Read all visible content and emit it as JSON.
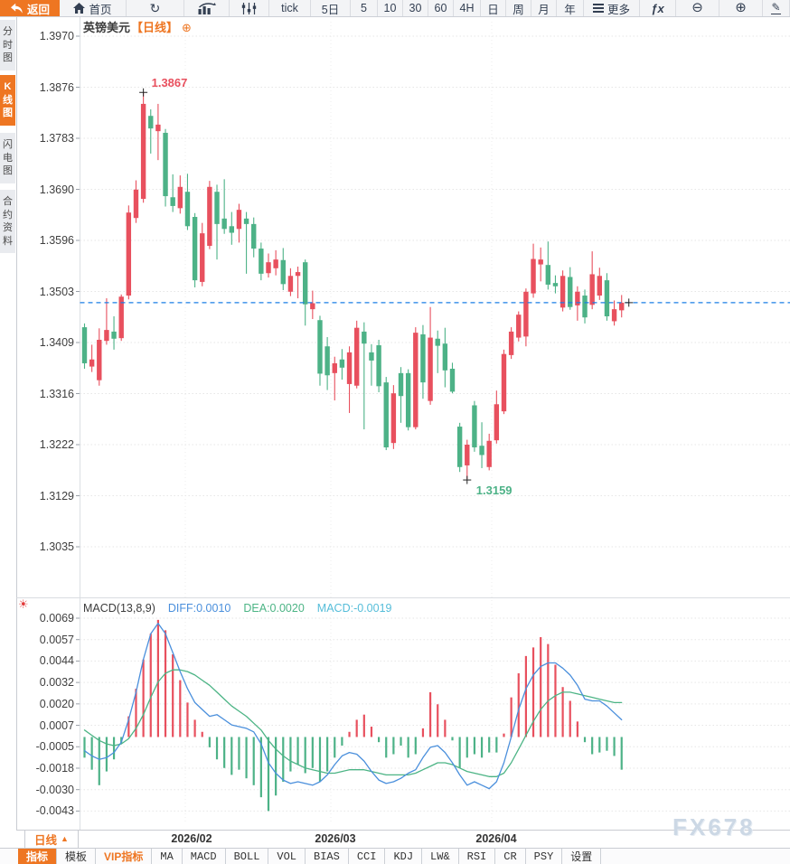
{
  "colors": {
    "accent": "#ee7622",
    "up": "#e8505e",
    "down": "#4db287",
    "diff_line": "#4a8fdc",
    "dea_line": "#4cb485",
    "macd_value_text": "#55bdd9",
    "dashed_line": "#1a7ee6",
    "annotation_high": "#e8505e",
    "annotation_low": "#4db287",
    "watermark": "#ccd8e5"
  },
  "top_toolbar": {
    "items": [
      {
        "name": "back-button",
        "icon": "back-icon",
        "label": "返回"
      },
      {
        "name": "home-button",
        "icon": "home-icon",
        "label": "首页"
      },
      {
        "name": "refresh-button",
        "icon": "refresh-icon",
        "label": ""
      },
      {
        "name": "chart-type-button",
        "icon": "bar-chart-icon",
        "label": ""
      },
      {
        "name": "indicator-style-button",
        "icon": "candlestick-icon",
        "label": ""
      },
      {
        "name": "timeframe-tick",
        "label": "tick"
      },
      {
        "name": "timeframe-5d",
        "label": "5日"
      },
      {
        "name": "timeframe-5",
        "label": "5"
      },
      {
        "name": "timeframe-10",
        "label": "10"
      },
      {
        "name": "timeframe-30",
        "label": "30"
      },
      {
        "name": "timeframe-60",
        "label": "60"
      },
      {
        "name": "timeframe-4h",
        "label": "4H"
      },
      {
        "name": "timeframe-day",
        "label": "日"
      },
      {
        "name": "timeframe-week",
        "label": "周"
      },
      {
        "name": "timeframe-month",
        "label": "月"
      },
      {
        "name": "timeframe-year",
        "label": "年"
      },
      {
        "name": "more-button",
        "icon": "menu-icon",
        "label": "更多"
      },
      {
        "name": "formula-button",
        "icon": "formula-icon",
        "label": ""
      },
      {
        "name": "zoom-out-button",
        "icon": "zoom-out-icon",
        "label": ""
      },
      {
        "name": "zoom-in-button",
        "icon": "zoom-in-icon",
        "label": ""
      },
      {
        "name": "draw-button",
        "icon": "draw-icon",
        "label": ""
      }
    ]
  },
  "sidebar": {
    "tabs": [
      {
        "name": "sidebar-tab-time-chart",
        "label": "分时图",
        "active": false
      },
      {
        "name": "sidebar-tab-kline-chart",
        "label": "K线图",
        "active": true
      },
      {
        "name": "sidebar-tab-lightning-chart",
        "label": "闪电图",
        "active": false
      },
      {
        "name": "sidebar-tab-contract-info",
        "label": "合约资料",
        "active": false
      }
    ]
  },
  "chart": {
    "instrument": "英镑美元",
    "timeframe_label": "【日线】"
  },
  "macd_header": {
    "name": "MACD(13,8,9)",
    "diff": "DIFF:0.0010",
    "dea": "DEA:0.0020",
    "macd": "MACD:-0.0019"
  },
  "bottom": {
    "timeframe_button": "日线",
    "tabs": [
      {
        "name": "tab-indicator",
        "label": "指标",
        "state": "active"
      },
      {
        "name": "tab-template",
        "label": "模板",
        "state": "normal"
      },
      {
        "name": "tab-vip-indicator",
        "label": "VIP指标",
        "state": "vip"
      },
      {
        "name": "tab-ma",
        "label": "MA",
        "state": "mono"
      },
      {
        "name": "tab-macd",
        "label": "MACD",
        "state": "mono"
      },
      {
        "name": "tab-boll",
        "label": "BOLL",
        "state": "mono"
      },
      {
        "name": "tab-vol",
        "label": "VOL",
        "state": "mono"
      },
      {
        "name": "tab-bias",
        "label": "BIAS",
        "state": "mono"
      },
      {
        "name": "tab-cci",
        "label": "CCI",
        "state": "mono"
      },
      {
        "name": "tab-kdj",
        "label": "KDJ",
        "state": "mono"
      },
      {
        "name": "tab-lw",
        "label": "LW&",
        "state": "mono"
      },
      {
        "name": "tab-rsi",
        "label": "RSI",
        "state": "mono"
      },
      {
        "name": "tab-cr",
        "label": "CR",
        "state": "mono"
      },
      {
        "name": "tab-psy",
        "label": "PSY",
        "state": "mono"
      },
      {
        "name": "tab-settings",
        "label": "设置",
        "state": "normal"
      }
    ]
  },
  "watermark": "FX678",
  "chart_data": {
    "type": "candlestick+macd",
    "title": "英镑美元",
    "timeframe": "日线",
    "price_axis_labels": [
      "1.3970",
      "1.3876",
      "1.3783",
      "1.3690",
      "1.3596",
      "1.3503",
      "1.3409",
      "1.3316",
      "1.3222",
      "1.3129",
      "1.3035"
    ],
    "macd_axis_labels": [
      "0.0069",
      "0.0057",
      "0.0044",
      "0.0032",
      "0.0020",
      "0.0007",
      "-0.0005",
      "-0.0018",
      "-0.0030",
      "-0.0043"
    ],
    "x_axis": {
      "month_labels": [
        "2026/02",
        "2026/03",
        "2026/04"
      ]
    },
    "high_annotation": {
      "value": "1.3867",
      "candle_index": 8
    },
    "low_annotation": {
      "value": "1.3159",
      "candle_index": 52
    },
    "last_price": 1.3482,
    "candles": [
      [
        1.3437,
        1.3444,
        1.3361,
        1.3371
      ],
      [
        1.3365,
        1.3405,
        1.3355,
        1.3378
      ],
      [
        1.334,
        1.3435,
        1.333,
        1.3414
      ],
      [
        1.3412,
        1.349,
        1.3405,
        1.3432
      ],
      [
        1.3429,
        1.3457,
        1.3396,
        1.3416
      ],
      [
        1.3417,
        1.3497,
        1.3412,
        1.3493
      ],
      [
        1.3495,
        1.366,
        1.3488,
        1.3647
      ],
      [
        1.3637,
        1.3706,
        1.3628,
        1.3689
      ],
      [
        1.3672,
        1.3867,
        1.3665,
        1.3846
      ],
      [
        1.3824,
        1.3836,
        1.3755,
        1.3801
      ],
      [
        1.3796,
        1.3846,
        1.3743,
        1.3808
      ],
      [
        1.3793,
        1.38,
        1.3658,
        1.3677
      ],
      [
        1.3675,
        1.3717,
        1.3648,
        1.3659
      ],
      [
        1.3655,
        1.3715,
        1.3645,
        1.3694
      ],
      [
        1.3685,
        1.3718,
        1.3615,
        1.3622
      ],
      [
        1.3639,
        1.3646,
        1.351,
        1.3523
      ],
      [
        1.352,
        1.3628,
        1.3512,
        1.3609
      ],
      [
        1.3586,
        1.3705,
        1.358,
        1.3694
      ],
      [
        1.3685,
        1.3698,
        1.3561,
        1.3626
      ],
      [
        1.3636,
        1.3708,
        1.3608,
        1.3617
      ],
      [
        1.3622,
        1.3648,
        1.3588,
        1.361
      ],
      [
        1.3617,
        1.3663,
        1.3592,
        1.3652
      ],
      [
        1.3636,
        1.3648,
        1.3535,
        1.3626
      ],
      [
        1.3626,
        1.3638,
        1.3565,
        1.3581
      ],
      [
        1.3581,
        1.3592,
        1.3523,
        1.3535
      ],
      [
        1.3536,
        1.3572,
        1.3528,
        1.3556
      ],
      [
        1.3545,
        1.3578,
        1.3532,
        1.3561
      ],
      [
        1.356,
        1.3582,
        1.3505,
        1.3516
      ],
      [
        1.3502,
        1.3545,
        1.3494,
        1.3531
      ],
      [
        1.3531,
        1.3548,
        1.349,
        1.3538
      ],
      [
        1.3556,
        1.3561,
        1.344,
        1.3479
      ],
      [
        1.347,
        1.3504,
        1.3452,
        1.3481
      ],
      [
        1.345,
        1.3458,
        1.333,
        1.3352
      ],
      [
        1.3402,
        1.3419,
        1.3322,
        1.3349
      ],
      [
        1.3353,
        1.3383,
        1.3303,
        1.3371
      ],
      [
        1.3378,
        1.3397,
        1.3341,
        1.3363
      ],
      [
        1.3333,
        1.3402,
        1.328,
        1.3391
      ],
      [
        1.333,
        1.3449,
        1.3325,
        1.3436
      ],
      [
        1.3429,
        1.3446,
        1.325,
        1.3407
      ],
      [
        1.3391,
        1.3406,
        1.333,
        1.3376
      ],
      [
        1.3404,
        1.3414,
        1.3318,
        1.3329
      ],
      [
        1.3336,
        1.3346,
        1.3212,
        1.3217
      ],
      [
        1.3225,
        1.3331,
        1.3214,
        1.3316
      ],
      [
        1.3353,
        1.3364,
        1.3262,
        1.3311
      ],
      [
        1.3353,
        1.336,
        1.3248,
        1.3254
      ],
      [
        1.3254,
        1.3437,
        1.325,
        1.3427
      ],
      [
        1.3424,
        1.3441,
        1.3306,
        1.3336
      ],
      [
        1.3302,
        1.3474,
        1.3295,
        1.3418
      ],
      [
        1.3416,
        1.3431,
        1.3353,
        1.3403
      ],
      [
        1.3407,
        1.3436,
        1.3327,
        1.3358
      ],
      [
        1.3361,
        1.3372,
        1.3316,
        1.3319
      ],
      [
        1.3255,
        1.3262,
        1.3172,
        1.3181
      ],
      [
        1.3184,
        1.3231,
        1.3159,
        1.3222
      ],
      [
        1.3294,
        1.3302,
        1.3209,
        1.3217
      ],
      [
        1.322,
        1.3263,
        1.3179,
        1.3203
      ],
      [
        1.3181,
        1.3242,
        1.3175,
        1.3229
      ],
      [
        1.323,
        1.3321,
        1.3224,
        1.3296
      ],
      [
        1.3283,
        1.3396,
        1.3278,
        1.3388
      ],
      [
        1.3386,
        1.3437,
        1.3379,
        1.3429
      ],
      [
        1.3418,
        1.3466,
        1.3411,
        1.346
      ],
      [
        1.342,
        1.3508,
        1.3402,
        1.3502
      ],
      [
        1.3499,
        1.359,
        1.3491,
        1.3562
      ],
      [
        1.3552,
        1.3583,
        1.3521,
        1.3561
      ],
      [
        1.3551,
        1.3594,
        1.3506,
        1.3515
      ],
      [
        1.3518,
        1.3532,
        1.3499,
        1.3512
      ],
      [
        1.3473,
        1.3541,
        1.3466,
        1.3531
      ],
      [
        1.3529,
        1.3547,
        1.3469,
        1.3474
      ],
      [
        1.3477,
        1.3512,
        1.3449,
        1.3502
      ],
      [
        1.3495,
        1.3506,
        1.3444,
        1.3455
      ],
      [
        1.3478,
        1.3576,
        1.347,
        1.3534
      ],
      [
        1.3495,
        1.3546,
        1.3487,
        1.3531
      ],
      [
        1.3523,
        1.3536,
        1.3449,
        1.3457
      ],
      [
        1.3448,
        1.3486,
        1.344,
        1.347
      ],
      [
        1.3468,
        1.3496,
        1.3455,
        1.3482
      ]
    ],
    "macd": {
      "params": "(13,8,9)",
      "hist": [
        -0.0012,
        -0.0019,
        -0.0028,
        -0.002,
        -0.0013,
        -0.0004,
        0.0012,
        0.0028,
        0.0045,
        0.006,
        0.0068,
        0.0062,
        0.0048,
        0.0033,
        0.002,
        0.001,
        0.0003,
        -0.0006,
        -0.0013,
        -0.0018,
        -0.0022,
        -0.0019,
        -0.0024,
        -0.0028,
        -0.0035,
        -0.0043,
        -0.0034,
        -0.0026,
        -0.002,
        -0.0016,
        -0.0021,
        -0.0018,
        -0.0026,
        -0.002,
        -0.0012,
        -0.0005,
        0.0003,
        0.001,
        0.0013,
        0.0006,
        -0.0003,
        -0.0012,
        -0.001,
        -0.0005,
        -0.0012,
        -0.001,
        0.0005,
        0.0026,
        0.0019,
        0.001,
        -0.0002,
        -0.0018,
        -0.0012,
        -0.001,
        -0.0012,
        -0.0009,
        -0.0009,
        0.0002,
        0.0023,
        0.0037,
        0.0047,
        0.0052,
        0.0058,
        0.0054,
        0.0042,
        0.0029,
        0.0021,
        0.0009,
        -0.0003,
        -0.001,
        -0.0009,
        -0.0008,
        -0.0011,
        -0.0019
      ],
      "diff": [
        -0.0008,
        -0.0011,
        -0.0013,
        -0.0012,
        -0.0009,
        -0.0003,
        0.001,
        0.0026,
        0.0045,
        0.006,
        0.0066,
        0.006,
        0.0049,
        0.0038,
        0.0028,
        0.002,
        0.0016,
        0.0012,
        0.0013,
        0.001,
        0.0007,
        0.0006,
        0.0005,
        0.0003,
        -0.0004,
        -0.0015,
        -0.0021,
        -0.0025,
        -0.0027,
        -0.0026,
        -0.0027,
        -0.0028,
        -0.0026,
        -0.0022,
        -0.0016,
        -0.0011,
        -0.0009,
        -0.001,
        -0.0014,
        -0.002,
        -0.0025,
        -0.0027,
        -0.0026,
        -0.0024,
        -0.0021,
        -0.0019,
        -0.0012,
        -0.0006,
        -0.0005,
        -0.0009,
        -0.0015,
        -0.0022,
        -0.0028,
        -0.0026,
        -0.0028,
        -0.003,
        -0.0026,
        -0.0015,
        0.0,
        0.0016,
        0.0028,
        0.0036,
        0.0041,
        0.0043,
        0.0043,
        0.004,
        0.0036,
        0.003,
        0.0022,
        0.0021,
        0.0021,
        0.0018,
        0.0014,
        0.001
      ],
      "dea": [
        0.0004,
        0.0001,
        -0.0002,
        -0.0004,
        -0.0005,
        -0.0004,
        -0.0001,
        0.0005,
        0.0013,
        0.0023,
        0.0032,
        0.0037,
        0.0039,
        0.0039,
        0.0038,
        0.0036,
        0.0033,
        0.003,
        0.0026,
        0.0022,
        0.0018,
        0.0015,
        0.0012,
        0.0008,
        0.0004,
        -0.0002,
        -0.0007,
        -0.0011,
        -0.0014,
        -0.0016,
        -0.0018,
        -0.0019,
        -0.002,
        -0.0021,
        -0.0021,
        -0.002,
        -0.0019,
        -0.0019,
        -0.0019,
        -0.002,
        -0.0021,
        -0.0022,
        -0.0022,
        -0.0022,
        -0.0022,
        -0.0021,
        -0.0019,
        -0.0017,
        -0.0015,
        -0.0015,
        -0.0016,
        -0.0018,
        -0.002,
        -0.0021,
        -0.0022,
        -0.0023,
        -0.0023,
        -0.0021,
        -0.0015,
        -0.0007,
        0.0001,
        0.0009,
        0.0016,
        0.0021,
        0.0024,
        0.0026,
        0.0026,
        0.0025,
        0.0024,
        0.0023,
        0.0022,
        0.0021,
        0.002,
        0.002
      ]
    }
  }
}
